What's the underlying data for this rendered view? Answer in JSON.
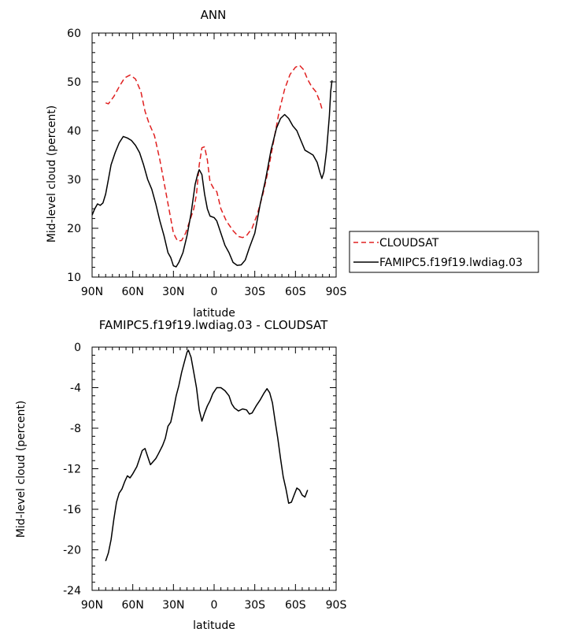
{
  "chart_data": [
    {
      "type": "line",
      "title": "ANN",
      "xlabel": "latitude",
      "ylabel": "Mid-level cloud (percent)",
      "xlim": [
        90,
        -90
      ],
      "ylim": [
        10,
        60
      ],
      "xticks": [
        {
          "value": 90,
          "label": "90N"
        },
        {
          "value": 60,
          "label": "60N"
        },
        {
          "value": 30,
          "label": "30N"
        },
        {
          "value": 0,
          "label": "0"
        },
        {
          "value": -30,
          "label": "30S"
        },
        {
          "value": -60,
          "label": "60S"
        },
        {
          "value": -90,
          "label": "90S"
        }
      ],
      "yticks": [
        10,
        20,
        30,
        40,
        50,
        60
      ],
      "legend": "right",
      "series": [
        {
          "name": "CLOUDSAT",
          "color": "#e02020",
          "dash": "dashed",
          "points": [
            [
              80,
              45.7
            ],
            [
              78,
              45.5
            ],
            [
              74,
              47
            ],
            [
              70,
              49
            ],
            [
              66,
              50.8
            ],
            [
              62,
              51.4
            ],
            [
              58,
              50.6
            ],
            [
              54,
              48
            ],
            [
              51,
              44
            ],
            [
              48,
              41.5
            ],
            [
              44,
              39
            ],
            [
              40,
              34
            ],
            [
              36,
              28
            ],
            [
              32,
              22
            ],
            [
              30,
              19
            ],
            [
              27,
              17.4
            ],
            [
              24,
              17.5
            ],
            [
              21,
              19
            ],
            [
              18,
              21.5
            ],
            [
              15,
              24
            ],
            [
              13,
              27
            ],
            [
              11,
              33
            ],
            [
              9,
              36.5
            ],
            [
              7,
              36.7
            ],
            [
              5,
              34
            ],
            [
              3,
              29.5
            ],
            [
              0,
              28
            ],
            [
              -2,
              27.5
            ],
            [
              -5,
              24
            ],
            [
              -9,
              21.5
            ],
            [
              -14,
              19.5
            ],
            [
              -18,
              18.3
            ],
            [
              -21,
              18.1
            ],
            [
              -24,
              18.5
            ],
            [
              -28,
              20
            ],
            [
              -32,
              23
            ],
            [
              -36,
              27
            ],
            [
              -40,
              32
            ],
            [
              -44,
              38
            ],
            [
              -48,
              44
            ],
            [
              -52,
              48.5
            ],
            [
              -56,
              51.5
            ],
            [
              -60,
              53
            ],
            [
              -63,
              53.4
            ],
            [
              -66,
              52.5
            ],
            [
              -69,
              50.5
            ],
            [
              -72,
              49
            ],
            [
              -75,
              48
            ],
            [
              -78,
              46
            ],
            [
              -80,
              44
            ]
          ]
        },
        {
          "name": "FAMIPC5.f19f19.lwdiag.03",
          "color": "#000000",
          "dash": "solid",
          "points": [
            [
              90,
              22.7
            ],
            [
              88,
              24
            ],
            [
              86,
              25
            ],
            [
              84,
              24.7
            ],
            [
              82,
              25.2
            ],
            [
              80,
              27
            ],
            [
              78,
              30
            ],
            [
              76,
              33
            ],
            [
              73,
              35.5
            ],
            [
              70,
              37.5
            ],
            [
              67,
              38.8
            ],
            [
              64,
              38.5
            ],
            [
              61,
              38
            ],
            [
              58,
              37
            ],
            [
              55,
              35.5
            ],
            [
              52,
              33
            ],
            [
              49,
              30
            ],
            [
              46,
              28
            ],
            [
              43,
              25
            ],
            [
              40,
              21.5
            ],
            [
              37,
              18.5
            ],
            [
              34,
              15
            ],
            [
              32,
              14
            ],
            [
              30,
              12.3
            ],
            [
              28,
              12.1
            ],
            [
              26,
              13
            ],
            [
              23,
              15
            ],
            [
              20,
              18.5
            ],
            [
              17,
              23
            ],
            [
              14,
              29
            ],
            [
              12,
              31.2
            ],
            [
              11,
              32
            ],
            [
              9,
              31
            ],
            [
              7,
              27
            ],
            [
              5,
              24
            ],
            [
              3,
              22.5
            ],
            [
              0,
              22.2
            ],
            [
              -2,
              21.5
            ],
            [
              -5,
              19
            ],
            [
              -8,
              16.5
            ],
            [
              -11,
              15
            ],
            [
              -14,
              13
            ],
            [
              -17,
              12.4
            ],
            [
              -20,
              12.5
            ],
            [
              -23,
              13.5
            ],
            [
              -26,
              16
            ],
            [
              -30,
              19
            ],
            [
              -34,
              25
            ],
            [
              -38,
              30
            ],
            [
              -42,
              36
            ],
            [
              -46,
              40.5
            ],
            [
              -49,
              42.5
            ],
            [
              -52,
              43.3
            ],
            [
              -55,
              42.5
            ],
            [
              -58,
              41
            ],
            [
              -61,
              40
            ],
            [
              -64,
              38
            ],
            [
              -67,
              36
            ],
            [
              -70,
              35.5
            ],
            [
              -73,
              35
            ],
            [
              -76,
              33.5
            ],
            [
              -78,
              31.5
            ],
            [
              -79.5,
              30.2
            ],
            [
              -81,
              31.5
            ],
            [
              -83,
              36
            ],
            [
              -85,
              43
            ],
            [
              -86,
              48
            ],
            [
              -87,
              50.3
            ]
          ]
        }
      ]
    },
    {
      "type": "line",
      "title": "FAMIPC5.f19f19.lwdiag.03 - CLOUDSAT",
      "xlabel": "latitude",
      "ylabel": "Mid-level cloud (percent)",
      "xlim": [
        90,
        -90
      ],
      "ylim": [
        -24,
        0
      ],
      "xticks": [
        {
          "value": 90,
          "label": "90N"
        },
        {
          "value": 60,
          "label": "60N"
        },
        {
          "value": 30,
          "label": "30N"
        },
        {
          "value": 0,
          "label": "0"
        },
        {
          "value": -30,
          "label": "30S"
        },
        {
          "value": -60,
          "label": "60S"
        },
        {
          "value": -90,
          "label": "90S"
        }
      ],
      "yticks": [
        -24,
        -20,
        -16,
        -12,
        -8,
        -4,
        0
      ],
      "series": [
        {
          "color": "#000000",
          "dash": "solid",
          "points": [
            [
              80,
              -21.1
            ],
            [
              78,
              -20.3
            ],
            [
              76,
              -19
            ],
            [
              74,
              -17
            ],
            [
              72,
              -15.3
            ],
            [
              70,
              -14.4
            ],
            [
              68,
              -14
            ],
            [
              66,
              -13.3
            ],
            [
              64,
              -12.7
            ],
            [
              62,
              -12.9
            ],
            [
              60,
              -12.5
            ],
            [
              57,
              -11.8
            ],
            [
              55,
              -11
            ],
            [
              53,
              -10.2
            ],
            [
              51,
              -10
            ],
            [
              49,
              -10.8
            ],
            [
              47,
              -11.6
            ],
            [
              45,
              -11.3
            ],
            [
              43,
              -11
            ],
            [
              41,
              -10.5
            ],
            [
              38,
              -9.7
            ],
            [
              36,
              -9
            ],
            [
              34,
              -7.8
            ],
            [
              32,
              -7.4
            ],
            [
              30,
              -6.2
            ],
            [
              28,
              -4.8
            ],
            [
              26,
              -3.8
            ],
            [
              24,
              -2.5
            ],
            [
              22,
              -1.5
            ],
            [
              20,
              -0.5
            ],
            [
              19,
              -0.3
            ],
            [
              17,
              -1
            ],
            [
              15,
              -2.5
            ],
            [
              13,
              -4
            ],
            [
              11,
              -6.2
            ],
            [
              9,
              -7.3
            ],
            [
              7,
              -6.5
            ],
            [
              5,
              -5.8
            ],
            [
              3,
              -5.3
            ],
            [
              1,
              -4.6
            ],
            [
              -2,
              -4
            ],
            [
              -5,
              -4
            ],
            [
              -8,
              -4.3
            ],
            [
              -11,
              -4.8
            ],
            [
              -13,
              -5.6
            ],
            [
              -15,
              -6
            ],
            [
              -18,
              -6.3
            ],
            [
              -21,
              -6.1
            ],
            [
              -24,
              -6.2
            ],
            [
              -26,
              -6.6
            ],
            [
              -28,
              -6.5
            ],
            [
              -31,
              -5.8
            ],
            [
              -34,
              -5.2
            ],
            [
              -37,
              -4.5
            ],
            [
              -39,
              -4.1
            ],
            [
              -41,
              -4.5
            ],
            [
              -43,
              -5.5
            ],
            [
              -45,
              -7.3
            ],
            [
              -47,
              -9
            ],
            [
              -49,
              -11
            ],
            [
              -51,
              -12.8
            ],
            [
              -53,
              -14
            ],
            [
              -55,
              -15.4
            ],
            [
              -57,
              -15.3
            ],
            [
              -59,
              -14.6
            ],
            [
              -61,
              -13.9
            ],
            [
              -63,
              -14.1
            ],
            [
              -65,
              -14.6
            ],
            [
              -67,
              -14.8
            ],
            [
              -69,
              -14.1
            ]
          ]
        }
      ]
    }
  ]
}
